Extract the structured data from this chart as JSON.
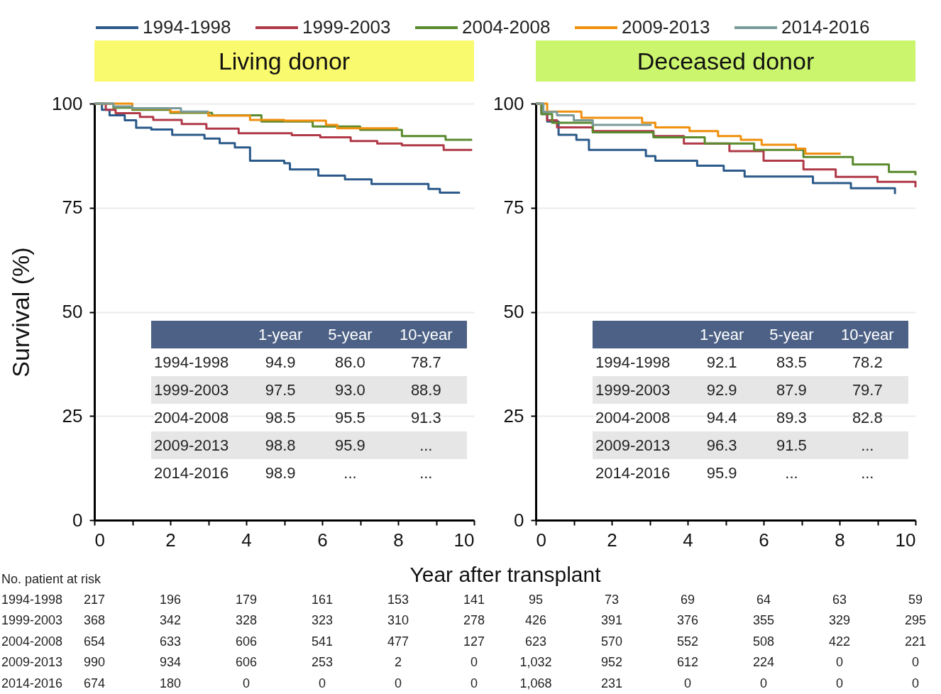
{
  "chart_data": [
    {
      "type": "step",
      "title": "Living donor",
      "xlabel": "Year after transplant",
      "ylabel": "Survival (%)",
      "xlim": [
        0,
        10
      ],
      "ylim": [
        0,
        100
      ],
      "xticks": [
        0,
        {
          "value": 1,
          "label": null
        },
        2,
        {
          "value": 3,
          "label": null
        },
        4,
        {
          "value": 5,
          "label": null
        },
        6,
        {
          "value": 7,
          "label": null
        },
        8,
        {
          "value": 9,
          "label": null
        },
        10
      ],
      "yticks": [
        0,
        25,
        50,
        75,
        100
      ],
      "grid": "y",
      "legend": "top",
      "marker": "none",
      "line_style": "solid",
      "series": [
        {
          "name": "1994-1998",
          "color": "#2b5a8a",
          "x": [
            0,
            0.2,
            0.4,
            0.8,
            1.1,
            1.5,
            2.05,
            2.9,
            3.3,
            3.7,
            4.1,
            5.0,
            5.15,
            5.9,
            6.6,
            7.3,
            8.8,
            9.1,
            9.63
          ],
          "values": [
            100,
            98.5,
            97.2,
            96,
            94.2,
            93.8,
            92.5,
            91.6,
            90.5,
            89.5,
            86.3,
            85.7,
            84.2,
            82.7,
            81.8,
            80.7,
            79.5,
            78.6,
            78.6
          ]
        },
        {
          "name": "1999-2003",
          "color": "#b03a48",
          "x": [
            0,
            0.3,
            0.56,
            1.2,
            1.55,
            2.3,
            2.95,
            3.8,
            5.2,
            5.95,
            6.75,
            7.45,
            8.1,
            9.2,
            9.95
          ],
          "values": [
            100,
            98.5,
            97.7,
            96.8,
            96.1,
            95.1,
            94,
            92.9,
            92.4,
            91.9,
            91,
            90.4,
            90,
            88.9,
            88.9
          ]
        },
        {
          "name": "2004-2008",
          "color": "#5a8a2e",
          "x": [
            0,
            0.5,
            1,
            2,
            3.1,
            4.4,
            5.75,
            7,
            8.1,
            9.25,
            9.95
          ],
          "values": [
            100,
            99,
            98.5,
            97.8,
            97.2,
            95.7,
            94.5,
            93.7,
            92.2,
            91.3,
            91.3
          ]
        },
        {
          "name": "2009-2013",
          "color": "#f0900e",
          "x": [
            0,
            1,
            2,
            3,
            4.1,
            5,
            6.1,
            6.4,
            8.0
          ],
          "values": [
            100,
            98.8,
            98,
            97.1,
            96.1,
            95.9,
            94.9,
            94.1,
            94.1
          ]
        },
        {
          "name": "2014-2016",
          "color": "#7a9a9a",
          "x": [
            0,
            0.5,
            1,
            2.28,
            3.0
          ],
          "values": [
            100,
            99.3,
            98.9,
            98.1,
            98.1
          ]
        }
      ],
      "annotations": [
        "1-year",
        "5-year",
        "10-year",
        "1994-1998",
        "94.9",
        "86.0",
        "78.7",
        "1999-2003",
        "97.5",
        "93.0",
        "88.9",
        "2004-2008",
        "98.5",
        "95.5",
        "91.3",
        "2009-2013",
        "98.8",
        "95.9",
        "...",
        "2014-2016",
        "98.9",
        "...",
        "...",
        "No. patient at risk",
        "1994-1998",
        "217",
        "196",
        "179",
        "161",
        "153",
        "141",
        "1999-2003",
        "368",
        "342",
        "328",
        "323",
        "310",
        "278",
        "2004-2008",
        "654",
        "633",
        "606",
        "541",
        "477",
        "127",
        "2009-2013",
        "990",
        "934",
        "606",
        "253",
        "2",
        "0",
        "2014-2016",
        "674",
        "180",
        "0",
        "0",
        "0",
        "0"
      ]
    },
    {
      "type": "step",
      "title": "Deceased donor",
      "xlim": [
        0,
        10
      ],
      "ylim": [
        0,
        100
      ],
      "xticks": [
        0,
        {
          "value": 1,
          "label": null
        },
        2,
        {
          "value": 3,
          "label": null
        },
        4,
        {
          "value": 5,
          "label": null
        },
        6,
        {
          "value": 7,
          "label": null
        },
        8,
        {
          "value": 9,
          "label": null
        },
        10
      ],
      "yticks": [
        0,
        25,
        50,
        75,
        100
      ],
      "grid": "y",
      "marker": "none",
      "line_style": "solid",
      "series": [
        {
          "color": "#2b5a8a",
          "x": [
            0,
            0.15,
            0.3,
            0.6,
            1.07,
            1.4,
            2.9,
            3.15,
            4.25,
            4.95,
            5.5,
            7.3,
            8.3,
            9.46
          ],
          "values": [
            100,
            97.5,
            95.7,
            92.5,
            91.3,
            88.9,
            87.4,
            86.3,
            85.1,
            83.9,
            82.5,
            80.9,
            79.7,
            78.3
          ]
        },
        {
          "color": "#b03a48",
          "x": [
            0,
            0.15,
            0.3,
            0.56,
            1.5,
            3.1,
            3.9,
            5.1,
            6,
            7.05,
            7.9,
            9,
            10
          ],
          "values": [
            100,
            98,
            96,
            94.3,
            93.4,
            92.2,
            90.4,
            88.6,
            86.3,
            84.2,
            82.4,
            81.2,
            79.9
          ]
        },
        {
          "color": "#5a8a2e",
          "x": [
            0,
            0.15,
            0.43,
            1.5,
            3.1,
            4.45,
            5.75,
            7.05,
            8.35,
            9.3,
            10
          ],
          "values": [
            100,
            97.5,
            95.4,
            93.1,
            91.9,
            90.4,
            88.9,
            87.2,
            85.4,
            83.6,
            82.8
          ]
        },
        {
          "color": "#f0900e",
          "x": [
            0,
            0.3,
            1.2,
            2.8,
            3.15,
            4.05,
            4.8,
            5.4,
            5.95,
            6.85,
            7.1,
            8.03
          ],
          "values": [
            100,
            98.1,
            96.6,
            95.4,
            94.3,
            93.4,
            92.2,
            91.3,
            90.1,
            89.2,
            88,
            88
          ]
        },
        {
          "color": "#7a9a9a",
          "x": [
            0,
            0.2,
            0.56,
            1.0,
            1.5,
            3.05
          ],
          "values": [
            100,
            98,
            97.2,
            96,
            94.9,
            94.9
          ]
        }
      ],
      "annotations": [
        "1-year",
        "5-year",
        "10-year",
        "1994-1998",
        "92.1",
        "83.5",
        "78.2",
        "1999-2003",
        "92.9",
        "87.9",
        "79.7",
        "2004-2008",
        "94.4",
        "89.3",
        "82.8",
        "2009-2013",
        "96.3",
        "91.5",
        "...",
        "2014-2016",
        "95.9",
        "...",
        "...",
        "95",
        "73",
        "69",
        "64",
        "63",
        "59",
        "426",
        "391",
        "376",
        "355",
        "329",
        "295",
        "623",
        "570",
        "552",
        "508",
        "422",
        "221",
        "1,032",
        "952",
        "612",
        "224",
        "0",
        "0",
        "1,068",
        "231",
        "0",
        "0",
        "0",
        "0"
      ]
    }
  ]
}
